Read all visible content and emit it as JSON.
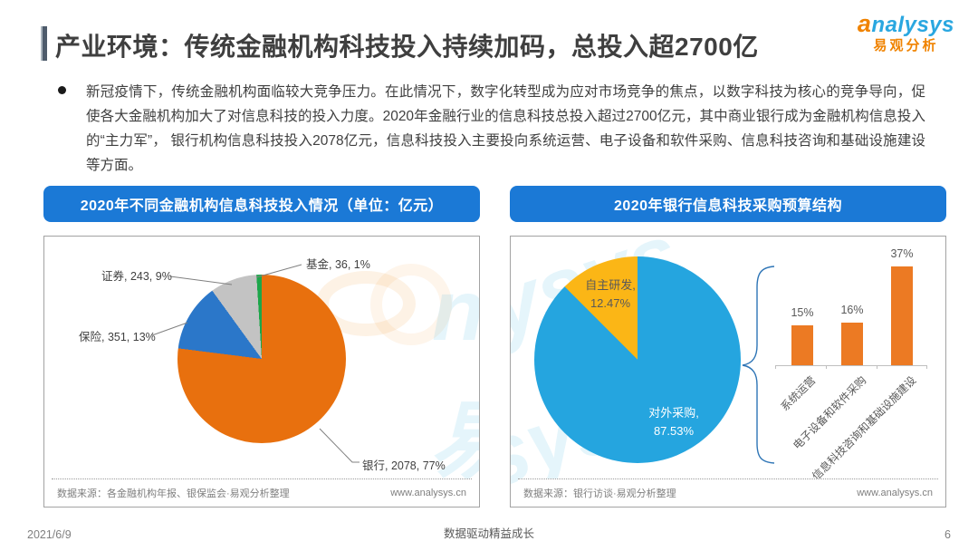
{
  "slide": {
    "title": "产业环境：传统金融机构科技投入持续加码，总投入超2700亿",
    "logo": {
      "brand_a": "a",
      "brand_rest": "nalysys",
      "brand_cn": "易观分析"
    },
    "bullet": "新冠疫情下，传统金融机构面临较大竞争压力。在此情况下，数字化转型成为应对市场竞争的焦点，以数字科技为核心的竞争导向，促使各大金融机构加大了对信息科技的投入力度。2020年金融行业的信息科技总投入超过2700亿元，其中商业银行成为金融机构信息投入的“主力军”， 银行机构信息科技投入2078亿元，信息科技投入主要投向系统运营、电子设备和软件采购、信息科技咨询和基础设施建设等方面。",
    "footer": {
      "date": "2021/6/9",
      "slogan": "数据驱动精益成长",
      "page": "6"
    }
  },
  "left_panel": {
    "banner": "2020年不同金融机构信息科技投入情况（单位：亿元）",
    "source": "数据来源：各金融机构年报、银保监会·易观分析整理",
    "site": "www.analysys.cn"
  },
  "right_panel": {
    "banner": "2020年银行信息科技采购预算结构",
    "source": "数据来源：银行访谈·易观分析整理",
    "site": "www.analysys.cn"
  },
  "chart_data": [
    {
      "type": "pie",
      "title": "2020年不同金融机构信息科技投入情况（单位：亿元）",
      "unit": "亿元",
      "labels": [
        "银行",
        "保险",
        "证券",
        "基金"
      ],
      "values": [
        2078,
        351,
        243,
        36
      ],
      "percentages": [
        77,
        13,
        9,
        1
      ],
      "colors": [
        "#e8700e",
        "#2b77c9",
        "#c3c3c3",
        "#1ca64a"
      ],
      "data_labels": [
        "银行, 2078, 77%",
        "保险, 351, 13%",
        "证券, 243, 9%",
        "基金, 36, 1%"
      ],
      "legend": "none",
      "start_angle_deg": 0
    },
    {
      "type": "pie",
      "title": "2020年银行信息科技采购预算结构",
      "labels": [
        "对外采购",
        "自主研发"
      ],
      "percentages": [
        87.53,
        12.47
      ],
      "colors": [
        "#25a5df",
        "#fbb616"
      ],
      "data_labels": [
        [
          "对外采购,",
          "87.53%"
        ],
        [
          "自主研发,",
          "12.47%"
        ]
      ],
      "legend": "none",
      "start_angle_deg": 0
    },
    {
      "type": "bar",
      "title": "2020年银行信息科技采购预算结构（对外采购明细）",
      "categories": [
        "系统运营",
        "电子设备和软件采购",
        "信息科技咨询和基础设施建设"
      ],
      "values": [
        15,
        16,
        37
      ],
      "value_labels": [
        "15%",
        "16%",
        "37%"
      ],
      "bar_color": "#ec7a23",
      "ylim": [
        0,
        40
      ],
      "grid": "off"
    }
  ]
}
